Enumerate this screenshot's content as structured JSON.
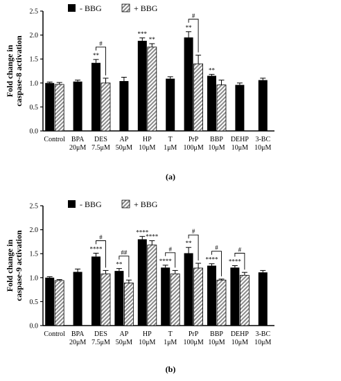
{
  "legend": {
    "minus_bbg": "- BBG",
    "plus_bbg": "+ BBG"
  },
  "colors": {
    "minus_bbg": "#000000",
    "plus_bbg_hatch": "#8a8a8a"
  },
  "chart_data": [
    {
      "type": "bar",
      "panel_label": "(a)",
      "ylabel": "Fold change in caspase-8 activation",
      "ylabel_lines": [
        "Fold change in",
        "caspase-8 activation"
      ],
      "ylim": [
        0,
        2.5
      ],
      "yticks": [
        "0.0",
        "0.5",
        "1.0",
        "1.5",
        "2.0",
        "2.5"
      ],
      "ytick_values": [
        0,
        0.5,
        1.0,
        1.5,
        2.0,
        2.5
      ],
      "groups": [
        {
          "label": [
            "Control"
          ],
          "minus": 1.0,
          "minus_err": 0.02,
          "plus": 0.97,
          "plus_err": 0.04,
          "minus_sig": "",
          "plus_sig": "",
          "bracket": ""
        },
        {
          "label": [
            "BPA",
            "20μM"
          ],
          "minus": 1.03,
          "minus_err": 0.03,
          "plus": null,
          "plus_err": null,
          "minus_sig": "",
          "plus_sig": "",
          "bracket": ""
        },
        {
          "label": [
            "DES",
            "7.5μM"
          ],
          "minus": 1.42,
          "minus_err": 0.07,
          "plus": 1.0,
          "plus_err": 0.1,
          "minus_sig": "**",
          "plus_sig": "",
          "bracket": "#"
        },
        {
          "label": [
            "AP",
            "50μM"
          ],
          "minus": 1.04,
          "minus_err": 0.08,
          "plus": null,
          "plus_err": null,
          "minus_sig": "",
          "plus_sig": "",
          "bracket": ""
        },
        {
          "label": [
            "HP",
            "10μM"
          ],
          "minus": 1.88,
          "minus_err": 0.06,
          "plus": 1.75,
          "plus_err": 0.07,
          "minus_sig": "***",
          "plus_sig": "**",
          "bracket": ""
        },
        {
          "label": [
            "T",
            "1μM"
          ],
          "minus": 1.09,
          "minus_err": 0.04,
          "plus": null,
          "plus_err": null,
          "minus_sig": "",
          "plus_sig": "",
          "bracket": ""
        },
        {
          "label": [
            "PrP",
            "100μM"
          ],
          "minus": 1.95,
          "minus_err": 0.12,
          "plus": 1.4,
          "plus_err": 0.18,
          "minus_sig": "**",
          "plus_sig": "",
          "bracket": "#"
        },
        {
          "label": [
            "BBP",
            "10μM"
          ],
          "minus": 1.15,
          "minus_err": 0.03,
          "plus": 0.96,
          "plus_err": 0.1,
          "minus_sig": "**",
          "plus_sig": "",
          "bracket": ""
        },
        {
          "label": [
            "DEHP",
            "10μM"
          ],
          "minus": 0.96,
          "minus_err": 0.04,
          "plus": null,
          "plus_err": null,
          "minus_sig": "",
          "plus_sig": "",
          "bracket": ""
        },
        {
          "label": [
            "3-BC",
            "10μM"
          ],
          "minus": 1.06,
          "minus_err": 0.04,
          "plus": null,
          "plus_err": null,
          "minus_sig": "",
          "plus_sig": "",
          "bracket": ""
        }
      ]
    },
    {
      "type": "bar",
      "panel_label": "(b)",
      "ylabel": "Fold change in caspase-9 activation",
      "ylabel_lines": [
        "Fold change in",
        "caspase-9 activation"
      ],
      "ylim": [
        0,
        2.5
      ],
      "yticks": [
        "0.0",
        "0.5",
        "1.0",
        "1.5",
        "2.0",
        "2.5"
      ],
      "ytick_values": [
        0,
        0.5,
        1.0,
        1.5,
        2.0,
        2.5
      ],
      "groups": [
        {
          "label": [
            "Control"
          ],
          "minus": 1.0,
          "minus_err": 0.02,
          "plus": 0.94,
          "plus_err": 0.02,
          "minus_sig": "",
          "plus_sig": "",
          "bracket": ""
        },
        {
          "label": [
            "BPA",
            "20μM"
          ],
          "minus": 1.12,
          "minus_err": 0.06,
          "plus": null,
          "plus_err": null,
          "minus_sig": "",
          "plus_sig": "",
          "bracket": ""
        },
        {
          "label": [
            "DES",
            "7.5μM"
          ],
          "minus": 1.44,
          "minus_err": 0.07,
          "plus": 1.08,
          "plus_err": 0.07,
          "minus_sig": "****",
          "plus_sig": "",
          "bracket": "#"
        },
        {
          "label": [
            "AP",
            "50μM"
          ],
          "minus": 1.14,
          "minus_err": 0.05,
          "plus": 0.89,
          "plus_err": 0.06,
          "minus_sig": "**",
          "plus_sig": "",
          "bracket": "##"
        },
        {
          "label": [
            "HP",
            "10μM"
          ],
          "minus": 1.8,
          "minus_err": 0.06,
          "plus": 1.68,
          "plus_err": 0.09,
          "minus_sig": "****",
          "plus_sig": "****",
          "bracket": ""
        },
        {
          "label": [
            "T",
            "1μM"
          ],
          "minus": 1.21,
          "minus_err": 0.05,
          "plus": 1.08,
          "plus_err": 0.07,
          "minus_sig": "****",
          "plus_sig": "",
          "bracket": "#"
        },
        {
          "label": [
            "PrP",
            "100μM"
          ],
          "minus": 1.51,
          "minus_err": 0.12,
          "plus": 1.2,
          "plus_err": 0.1,
          "minus_sig": "**",
          "plus_sig": "",
          "bracket": "#"
        },
        {
          "label": [
            "BBP",
            "10μM"
          ],
          "minus": 1.25,
          "minus_err": 0.04,
          "plus": 0.95,
          "plus_err": 0.02,
          "minus_sig": "****",
          "plus_sig": "",
          "bracket": "#"
        },
        {
          "label": [
            "DEHP",
            "10μM"
          ],
          "minus": 1.21,
          "minus_err": 0.04,
          "plus": 1.05,
          "plus_err": 0.06,
          "minus_sig": "****",
          "plus_sig": "",
          "bracket": "#"
        },
        {
          "label": [
            "3-BC",
            "10μM"
          ],
          "minus": 1.11,
          "minus_err": 0.04,
          "plus": null,
          "plus_err": null,
          "minus_sig": "",
          "plus_sig": "",
          "bracket": ""
        }
      ]
    }
  ]
}
